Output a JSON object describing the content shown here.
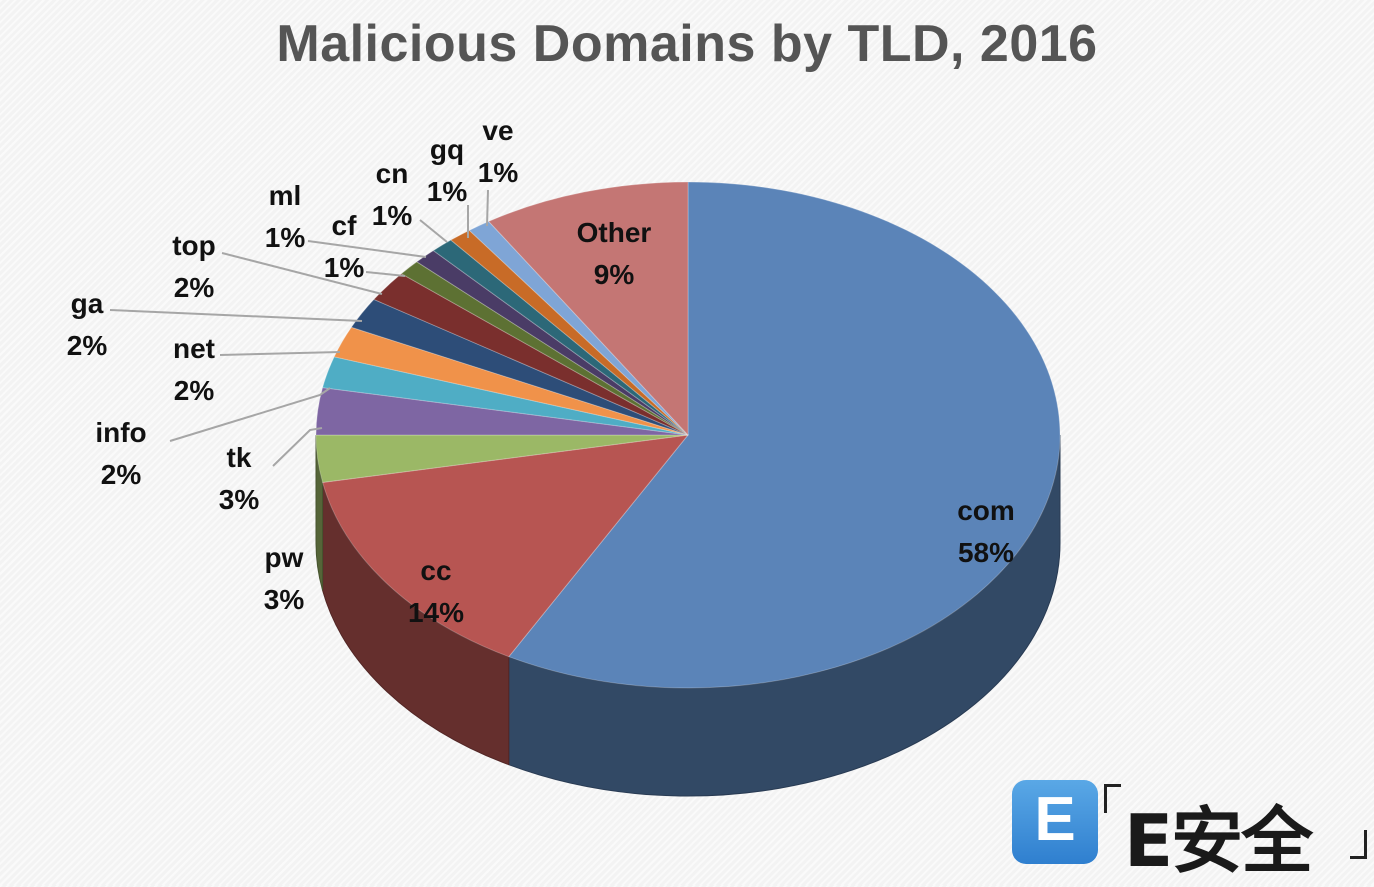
{
  "chart_data": {
    "type": "pie",
    "title": "Malicious Domains by TLD, 2016",
    "slices": [
      {
        "label": "com",
        "pct": "58%",
        "value": 58,
        "color": "#5b84b8"
      },
      {
        "label": "cc",
        "pct": "14%",
        "value": 14,
        "color": "#b75552"
      },
      {
        "label": "pw",
        "pct": "3%",
        "value": 3,
        "color": "#9bb866"
      },
      {
        "label": "tk",
        "pct": "3%",
        "value": 3,
        "color": "#7e66a3"
      },
      {
        "label": "info",
        "pct": "2%",
        "value": 2,
        "color": "#4fadc5"
      },
      {
        "label": "net",
        "pct": "2%",
        "value": 2,
        "color": "#f0924a"
      },
      {
        "label": "ga",
        "pct": "2%",
        "value": 2,
        "color": "#2d4d78"
      },
      {
        "label": "top",
        "pct": "2%",
        "value": 2,
        "color": "#7a2f2d"
      },
      {
        "label": "cf",
        "pct": "1%",
        "value": 1,
        "color": "#5d7133"
      },
      {
        "label": "ml",
        "pct": "1%",
        "value": 1,
        "color": "#4a3c66"
      },
      {
        "label": "cn",
        "pct": "1%",
        "value": 1,
        "color": "#2c6878"
      },
      {
        "label": "gq",
        "pct": "1%",
        "value": 1,
        "color": "#c86b27"
      },
      {
        "label": "ve",
        "pct": "1%",
        "value": 1,
        "color": "#7fa5d6"
      },
      {
        "label": "Other",
        "pct": "9%",
        "value": 9,
        "color": "#c47674"
      }
    ]
  },
  "logo": {
    "badge": "E",
    "text": "E安全"
  }
}
